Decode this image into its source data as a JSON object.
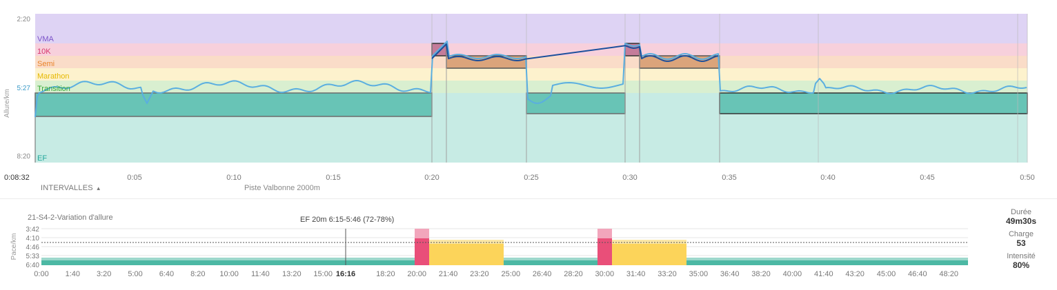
{
  "header": {
    "start_time": "0:08:32",
    "intervals_label": "INTERVALLES",
    "location": "Piste Valbonne 2000m"
  },
  "chart_data": [
    {
      "type": "line",
      "ylabel": "Allure/km",
      "y_ticks": [
        "2:20",
        "5:27",
        "8:20"
      ],
      "x_ticks": [
        "0:05",
        "0:10",
        "0:15",
        "0:20",
        "0:25",
        "0:30",
        "0:35",
        "0:40",
        "0:45",
        "0:50"
      ],
      "zones": [
        {
          "name": "VMA",
          "color": "#ded3f4"
        },
        {
          "name": "10K",
          "color": "#f7d0dc"
        },
        {
          "name": "Semi",
          "color": "#fadcc8"
        },
        {
          "name": "Marathon",
          "color": "#fdf2cd"
        },
        {
          "name": "Transition",
          "color": "#d9efd0"
        },
        {
          "name": "EF",
          "color": "#c7ebe4"
        }
      ],
      "zone_label_colors": [
        "#7b52c8",
        "#d6336c",
        "#e8832a",
        "#e6b800",
        "#36a836",
        "#20a59a"
      ],
      "series_color": "#5aaee0"
    },
    {
      "type": "bar",
      "title": "21-S4-2-Variation d'allure",
      "annotation": "EF 20m 6:15-5:46 (72-78%)",
      "ylabel": "Pace/km",
      "y_ticks": [
        "3:42",
        "4:10",
        "4:46",
        "5:33",
        "6:40"
      ],
      "x_ticks": [
        "0:00",
        "1:40",
        "3:20",
        "5:00",
        "6:40",
        "8:20",
        "10:00",
        "11:40",
        "13:20",
        "15:00",
        "18:20",
        "20:00",
        "21:40",
        "23:20",
        "25:00",
        "26:40",
        "28:20",
        "30:00",
        "31:40",
        "33:20",
        "35:00",
        "36:40",
        "38:20",
        "40:00",
        "41:40",
        "43:20",
        "45:00",
        "46:40",
        "48:20"
      ],
      "cursor_label": "16:16",
      "colors": {
        "ef": "#4cb8a4",
        "fast": "#e94f79",
        "fast_light": "#f2a6bc",
        "medium": "#fcd45a",
        "medium_light": "#fbe7a6"
      }
    }
  ],
  "stats": [
    {
      "label": "Durée",
      "value": "49m30s"
    },
    {
      "label": "Charge",
      "value": "53"
    },
    {
      "label": "Intensité",
      "value": "80%"
    }
  ]
}
